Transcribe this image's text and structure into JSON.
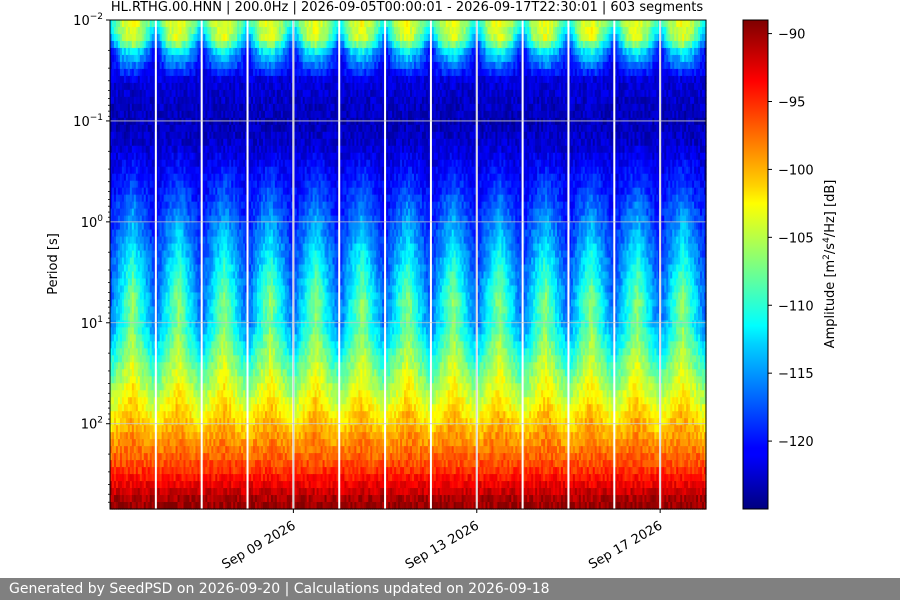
{
  "chart_data": {
    "type": "heatmap",
    "title": "HL.RTHG.00.HNN | 200.0Hz | 2026-09-05T00:00:01 - 2026-09-17T22:30:01 | 603 segments",
    "ylabel": "Period [s]",
    "colorbar_label_parts": [
      "Amplitude [m",
      "2",
      "/s",
      "4",
      "/Hz] [dB]"
    ],
    "x_start": "2026-09-05T00:00:01",
    "x_end": "2026-09-18T00:00:00",
    "x_ticks": [
      {
        "date": "2026-09-09",
        "label": "Sep 09 2026"
      },
      {
        "date": "2026-09-13",
        "label": "Sep 13 2026"
      },
      {
        "date": "2026-09-17",
        "label": "Sep 17 2026"
      }
    ],
    "y_scale": "log",
    "y_inverted": true,
    "ylim": [
      0.01,
      700
    ],
    "y_ticks": [
      {
        "value": 0.01,
        "base": "10",
        "exp": "−2"
      },
      {
        "value": 0.1,
        "base": "10",
        "exp": "−1"
      },
      {
        "value": 1,
        "base": "10",
        "exp": "0"
      },
      {
        "value": 10,
        "base": "10",
        "exp": "1"
      },
      {
        "value": 100,
        "base": "10",
        "exp": "2"
      }
    ],
    "colorbar": {
      "colormap": "jet",
      "range": [
        -125,
        -89
      ],
      "ticks": [
        -90,
        -95,
        -100,
        -105,
        -110,
        -115,
        -120
      ],
      "tick_labels": [
        "−90",
        "−95",
        "−100",
        "−105",
        "−110",
        "−115",
        "−120"
      ]
    },
    "grid": true,
    "gap_days": [
      1,
      2,
      3,
      4,
      5,
      6,
      7,
      8,
      9,
      10,
      11,
      12
    ],
    "daily_profile_db": [
      {
        "hour": 0,
        "short_period_db": -122,
        "mid_period_db": -123
      },
      {
        "hour": 6,
        "short_period_db": -110,
        "mid_period_db": -116
      },
      {
        "hour": 12,
        "short_period_db": -106,
        "mid_period_db": -110
      },
      {
        "hour": 18,
        "short_period_db": -112,
        "mid_period_db": -117
      }
    ],
    "period_band_db": [
      {
        "period": 0.01,
        "db": -110
      },
      {
        "period": 0.02,
        "db": -121
      },
      {
        "period": 0.1,
        "db": -123
      },
      {
        "period": 1,
        "db": -120
      },
      {
        "period": 10,
        "db": -117
      },
      {
        "period": 100,
        "db": -102
      },
      {
        "period": 300,
        "db": -95
      },
      {
        "period": 600,
        "db": -90
      }
    ]
  },
  "footer": {
    "text": "Generated by SeedPSD on 2026-09-20 | Calculations updated on 2026-09-18"
  },
  "colors": {
    "footer_bg": "#808080",
    "grid": "#c8c8c8",
    "gap": "#ffffff"
  }
}
